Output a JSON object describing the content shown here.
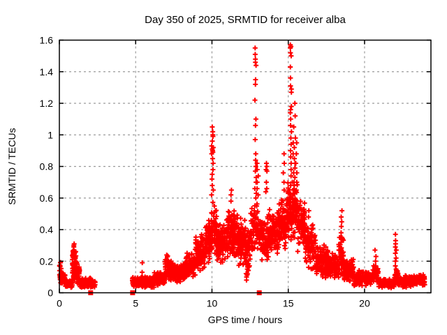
{
  "window": {
    "background": "#ffffff"
  },
  "chart_data": {
    "type": "scatter",
    "title": "Day 350 of 2025, SRMTID for receiver alba",
    "xlabel": "GPS time / hours",
    "ylabel": "SRMTID / TECUs",
    "xlim": [
      0,
      24.35
    ],
    "ylim": [
      0,
      1.6
    ],
    "xticks": [
      "0",
      "5",
      "10",
      "15",
      "20"
    ],
    "yticks": [
      "0",
      "0.2",
      "0.4",
      "0.6",
      "0.8",
      "1",
      "1.2",
      "1.4",
      "1.6"
    ],
    "grid": true,
    "grid_color": "#9a9a9a",
    "legend": "none",
    "marker": {
      "shape": "plus",
      "color": "#ff0000",
      "size": 7,
      "stroke_width": 2
    },
    "seed": 1234,
    "series": [
      {
        "name": "srmtid-band",
        "comment": "dense + markers; segments = [hour_start, hour_end, value_min, value_max, n_points]",
        "segments": [
          [
            0.0,
            0.12,
            0.05,
            0.2,
            26
          ],
          [
            0.12,
            0.4,
            0.04,
            0.14,
            40
          ],
          [
            0.4,
            0.85,
            0.03,
            0.09,
            55
          ],
          [
            0.85,
            1.1,
            0.06,
            0.31,
            70
          ],
          [
            1.1,
            1.35,
            0.05,
            0.2,
            40
          ],
          [
            1.35,
            1.7,
            0.03,
            0.09,
            55
          ],
          [
            1.7,
            2.1,
            0.03,
            0.1,
            60
          ],
          [
            2.1,
            2.35,
            0.03,
            0.08,
            30
          ],
          [
            4.75,
            5.3,
            0.03,
            0.1,
            70
          ],
          [
            5.3,
            6.2,
            0.03,
            0.11,
            110
          ],
          [
            6.2,
            6.9,
            0.04,
            0.14,
            80
          ],
          [
            6.9,
            7.45,
            0.06,
            0.25,
            75
          ],
          [
            7.45,
            8.2,
            0.06,
            0.19,
            90
          ],
          [
            8.2,
            8.9,
            0.08,
            0.26,
            85
          ],
          [
            8.9,
            9.55,
            0.12,
            0.38,
            95
          ],
          [
            9.55,
            9.95,
            0.18,
            0.48,
            70
          ],
          [
            9.95,
            10.3,
            0.22,
            0.6,
            55
          ],
          [
            10.3,
            10.9,
            0.17,
            0.47,
            95
          ],
          [
            10.9,
            11.7,
            0.2,
            0.54,
            135
          ],
          [
            11.7,
            12.2,
            0.16,
            0.48,
            90
          ],
          [
            12.2,
            12.5,
            0.1,
            0.42,
            55
          ],
          [
            12.5,
            13.1,
            0.22,
            0.58,
            80
          ],
          [
            13.1,
            13.7,
            0.18,
            0.5,
            85
          ],
          [
            13.7,
            14.3,
            0.22,
            0.55,
            90
          ],
          [
            14.3,
            14.9,
            0.25,
            0.62,
            95
          ],
          [
            14.9,
            15.6,
            0.28,
            0.72,
            130
          ],
          [
            15.6,
            16.1,
            0.24,
            0.6,
            85
          ],
          [
            16.1,
            16.8,
            0.14,
            0.48,
            90
          ],
          [
            16.8,
            17.6,
            0.09,
            0.32,
            105
          ],
          [
            17.6,
            18.3,
            0.07,
            0.26,
            90
          ],
          [
            18.3,
            18.65,
            0.09,
            0.38,
            45
          ],
          [
            18.65,
            19.3,
            0.06,
            0.22,
            75
          ],
          [
            19.3,
            20.1,
            0.04,
            0.15,
            85
          ],
          [
            20.1,
            20.55,
            0.04,
            0.14,
            55
          ],
          [
            20.55,
            20.9,
            0.05,
            0.18,
            40
          ],
          [
            20.9,
            21.95,
            0.03,
            0.09,
            110
          ],
          [
            21.95,
            22.2,
            0.04,
            0.16,
            35
          ],
          [
            22.2,
            23.1,
            0.03,
            0.11,
            105
          ],
          [
            23.1,
            23.95,
            0.04,
            0.12,
            95
          ]
        ]
      },
      {
        "name": "srmtid-spike-columns",
        "comment": "tall narrow vertical strings of + markers; x = hour, values = TECUs",
        "columns": [
          {
            "x": 10.03,
            "jitter": 0.06,
            "values": [
              1.05,
              1.02,
              1.0,
              0.99,
              0.96,
              0.93,
              0.92,
              0.91,
              0.9,
              0.9,
              0.89,
              0.88,
              0.85,
              0.82,
              0.78,
              0.75,
              0.72,
              0.68,
              0.65,
              0.62
            ]
          },
          {
            "x": 12.86,
            "jitter": 0.05,
            "values": [
              1.55,
              1.51,
              1.48,
              1.46,
              1.44,
              1.35,
              1.32,
              1.22,
              1.1,
              1.06,
              0.97,
              0.88,
              0.84,
              0.8,
              0.77,
              0.73,
              0.7,
              0.66,
              0.63,
              0.6
            ]
          },
          {
            "x": 13.0,
            "jitter": 0.06,
            "values": [
              0.82,
              0.78,
              0.74,
              0.7,
              0.66,
              0.62
            ]
          },
          {
            "x": 13.55,
            "jitter": 0.06,
            "values": [
              0.82,
              0.8,
              0.78,
              0.77,
              0.7,
              0.66,
              0.64
            ]
          },
          {
            "x": 15.18,
            "jitter": 0.05,
            "values": [
              1.57,
              1.56,
              1.55,
              1.52,
              1.5,
              1.43,
              1.36,
              1.31,
              1.29,
              1.27,
              1.18,
              1.16,
              1.14,
              1.1,
              1.06,
              1.02,
              0.98,
              0.94,
              0.9,
              0.86,
              0.82,
              0.78,
              0.74
            ]
          },
          {
            "x": 15.38,
            "jitter": 0.09,
            "values": [
              1.2,
              1.12,
              1.05,
              0.98,
              0.95,
              0.92,
              0.88,
              0.85,
              0.82,
              0.79,
              0.76,
              0.73,
              0.7,
              0.68,
              0.65
            ]
          },
          {
            "x": 15.55,
            "jitter": 0.06,
            "values": [
              0.95,
              0.88,
              0.82,
              0.76,
              0.7,
              0.65
            ]
          },
          {
            "x": 14.72,
            "jitter": 0.05,
            "values": [
              0.88,
              0.82,
              0.76,
              0.7,
              0.65
            ]
          },
          {
            "x": 11.25,
            "jitter": 0.06,
            "values": [
              0.65,
              0.62,
              0.58
            ]
          },
          {
            "x": 16.35,
            "jitter": 0.04,
            "values": [
              0.52,
              0.48
            ]
          },
          {
            "x": 18.5,
            "jitter": 0.05,
            "values": [
              0.52,
              0.48,
              0.45,
              0.42,
              0.38,
              0.35,
              0.32,
              0.28,
              0.25,
              0.22,
              0.18,
              0.15,
              0.12
            ]
          },
          {
            "x": 20.7,
            "jitter": 0.05,
            "values": [
              0.27,
              0.23,
              0.2,
              0.17,
              0.14,
              0.12
            ]
          },
          {
            "x": 22.05,
            "jitter": 0.04,
            "values": [
              0.37,
              0.33,
              0.31,
              0.29,
              0.27,
              0.25,
              0.22,
              0.2,
              0.17,
              0.15,
              0.13,
              0.11,
              0.09
            ]
          },
          {
            "x": 12.3,
            "jitter": 0.04,
            "values": [
              0.15,
              0.12,
              0.1,
              0.08
            ]
          },
          {
            "x": 5.45,
            "jitter": 0.03,
            "values": [
              0.19,
              0.13
            ]
          },
          {
            "x": 0.95,
            "jitter": 0.04,
            "values": [
              0.31,
              0.3,
              0.29
            ]
          }
        ]
      },
      {
        "name": "gap-markers",
        "comment": "filled squares sitting on the x-axis",
        "marker": {
          "shape": "square",
          "color": "#ff0000",
          "size": 7
        },
        "x": [
          2.05,
          4.8,
          13.1
        ],
        "y": 0
      }
    ]
  }
}
